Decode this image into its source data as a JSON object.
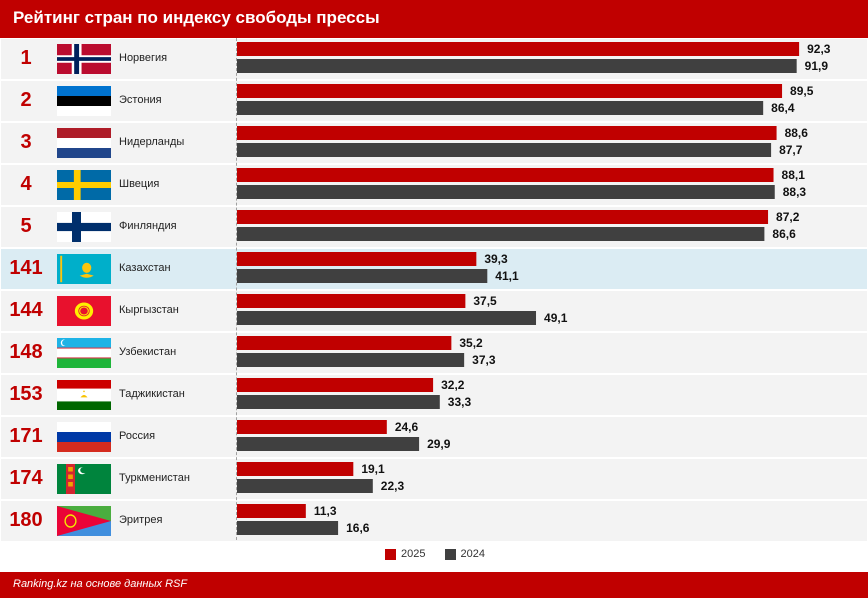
{
  "header": {
    "title": "Рейтинг стран по индексу свободы прессы"
  },
  "footer": {
    "source": "Ranking.kz на основе данных RSF"
  },
  "colors": {
    "y2025": "#c00000",
    "y2024": "#404040",
    "highlight": "#dbecf3"
  },
  "chart_data": {
    "type": "bar",
    "orientation": "horizontal",
    "title": "Рейтинг стран по индексу свободы прессы",
    "ranks": [
      "1",
      "2",
      "3",
      "4",
      "5",
      "141",
      "144",
      "148",
      "153",
      "171",
      "174",
      "180"
    ],
    "categories": [
      "Норвегия",
      "Эстония",
      "Нидерланды",
      "Швеция",
      "Финляндия",
      "Казахстан",
      "Кыргызстан",
      "Узбекистан",
      "Таджикистан",
      "Россия",
      "Туркменистан",
      "Эритрея"
    ],
    "flags": [
      "norway-flag",
      "estonia-flag",
      "netherlands-flag",
      "sweden-flag",
      "finland-flag",
      "kazakhstan-flag",
      "kyrgyzstan-flag",
      "uzbekistan-flag",
      "tajikistan-flag",
      "russia-flag",
      "turkmenistan-flag",
      "eritrea-flag"
    ],
    "highlight": "Казахстан",
    "series": [
      {
        "name": "2025",
        "values": [
          92.3,
          89.5,
          88.6,
          88.1,
          87.2,
          39.3,
          37.5,
          35.2,
          32.2,
          24.6,
          19.1,
          11.3
        ],
        "labels": [
          "92,3",
          "89,5",
          "88,6",
          "88,1",
          "87,2",
          "39,3",
          "37,5",
          "35,2",
          "32,2",
          "24,6",
          "19,1",
          "11,3"
        ]
      },
      {
        "name": "2024",
        "values": [
          91.9,
          86.4,
          87.7,
          88.3,
          86.6,
          41.1,
          49.1,
          37.3,
          33.3,
          29.9,
          22.3,
          16.6
        ],
        "labels": [
          "91,9",
          "86,4",
          "87,7",
          "88,3",
          "86,6",
          "41,1",
          "49,1",
          "37,3",
          "33,3",
          "29,9",
          "22,3",
          "16,6"
        ]
      }
    ],
    "legend": "bottom-center",
    "grid": false
  }
}
